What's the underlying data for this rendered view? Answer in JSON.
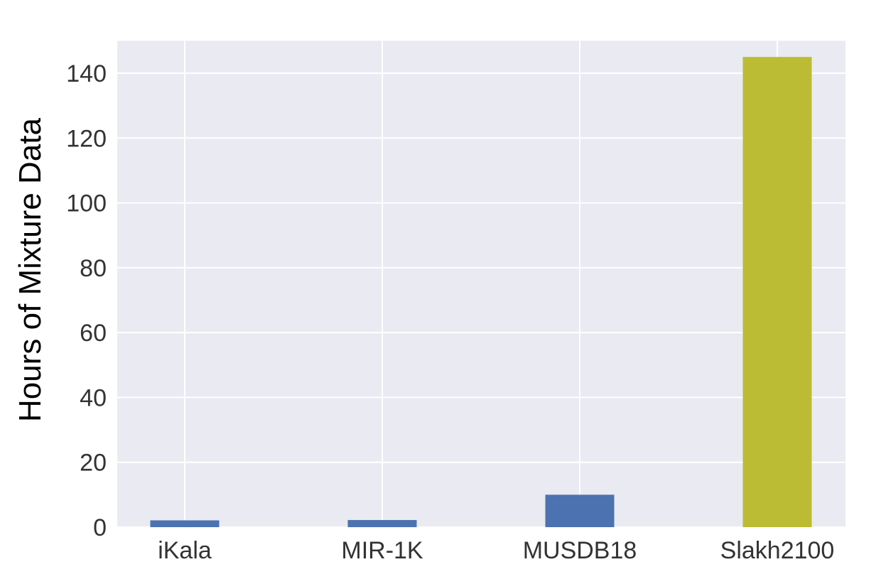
{
  "chart_data": {
    "type": "bar",
    "title": "",
    "xlabel": "",
    "ylabel": "Hours of Mixture Data",
    "categories": [
      "iKala",
      "MIR-1K",
      "MUSDB18",
      "Slakh2100"
    ],
    "values": [
      2.1,
      2.2,
      10.0,
      145.0
    ],
    "ylim": [
      0,
      150
    ],
    "yticks": [
      0,
      20,
      40,
      60,
      80,
      100,
      120,
      140
    ],
    "grid": true,
    "colors": {
      "plot_background": "#EAEAF2",
      "grid": "#FFFFFF",
      "bars": [
        "#4C72B0",
        "#4C72B0",
        "#4C72B0",
        "#BCBC34"
      ]
    }
  }
}
